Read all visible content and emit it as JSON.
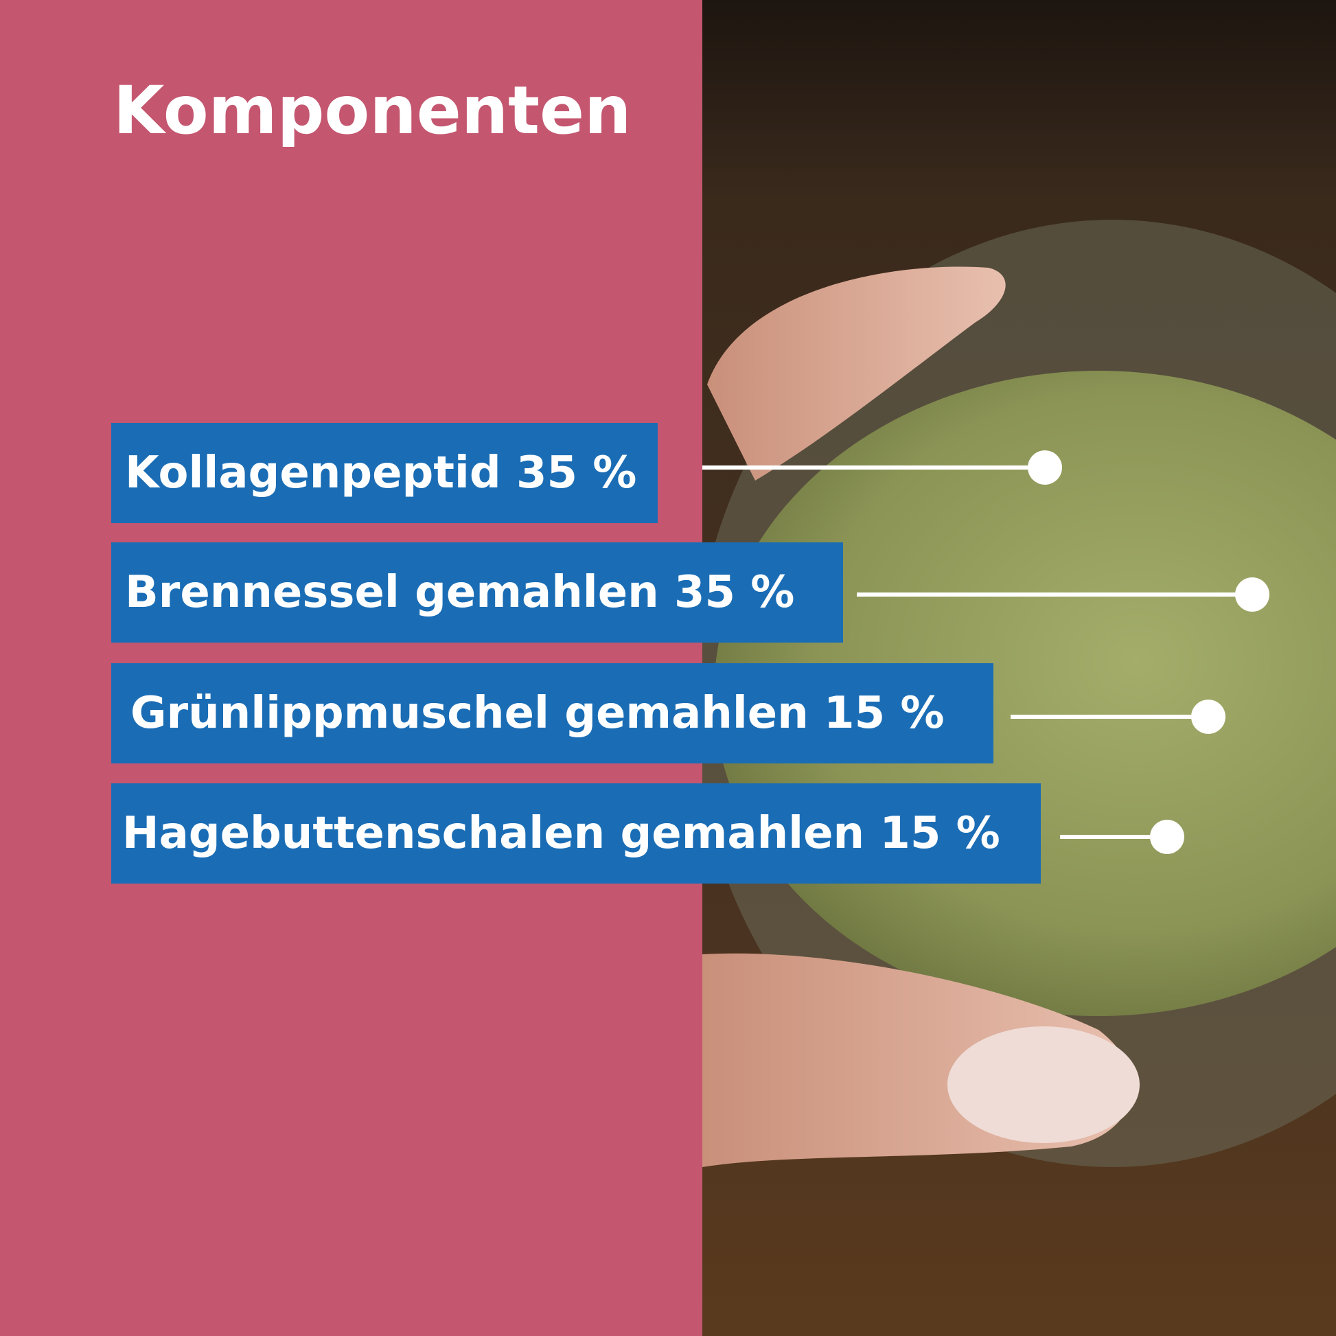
{
  "header": {
    "title": "Komponenten"
  },
  "items": [
    {
      "label": "Kollagenpeptid 35 %"
    },
    {
      "label": "Brennessel gemahlen 35 %"
    },
    {
      "label": "Grünlippmuschel gemahlen 15 %"
    },
    {
      "label": "Hagebuttenschalen gemahlen 15 %"
    }
  ]
}
